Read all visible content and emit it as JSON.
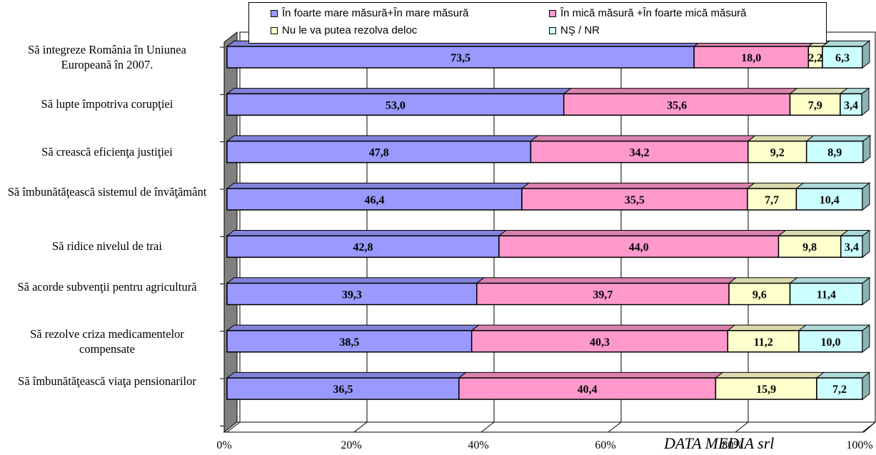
{
  "chart_data": {
    "type": "bar",
    "stacked": true,
    "orientation": "horizontal",
    "percent_stacked": true,
    "categories": [
      "Să integreze România în Uniunea Europeană în 2007.",
      "Să lupte împotriva corupţiei",
      "Să crească eficienţa justiţiei",
      "Să îmbunătăţească sistemul de învăţământ",
      "Să ridice nivelul de trai",
      "Să acorde subvenţii pentru agricultură",
      "Să rezolve criza medicamentelor compensate",
      "Să îmbunătăţească viaţa pensionarilor"
    ],
    "series": [
      {
        "name": "În foarte mare măsură+În mare măsură",
        "color": "#9999ff",
        "values": [
          73.5,
          53.0,
          47.8,
          46.4,
          42.8,
          39.3,
          38.5,
          36.5
        ],
        "labels": [
          "73,5",
          "53,0",
          "47,8",
          "46,4",
          "42,8",
          "39,3",
          "38,5",
          "36,5"
        ]
      },
      {
        "name": "În mică măsură +În foarte mică măsură",
        "color": "#ff99cc",
        "values": [
          18.0,
          35.6,
          34.2,
          35.5,
          44.0,
          39.7,
          40.3,
          40.4
        ],
        "labels": [
          "18,0",
          "35,6",
          "34,2",
          "35,5",
          "44,0",
          "39,7",
          "40,3",
          "40,4"
        ]
      },
      {
        "name": "Nu le va putea rezolva deloc",
        "color": "#ffffcc",
        "values": [
          2.2,
          7.9,
          9.2,
          7.7,
          9.8,
          9.6,
          11.2,
          15.9
        ],
        "labels": [
          "2,2",
          "7,9",
          "9,2",
          "7,7",
          "9,8",
          "9,6",
          "11,2",
          "15,9"
        ]
      },
      {
        "name": "NŞ / NR",
        "color": "#ccffff",
        "values": [
          6.3,
          3.4,
          8.9,
          10.4,
          3.4,
          11.4,
          10.0,
          7.2
        ],
        "labels": [
          "6,3",
          "3,4",
          "8,9",
          "10,4",
          "3,4",
          "11,4",
          "10,0",
          "7,2"
        ]
      }
    ],
    "x_ticks": [
      "0%",
      "20%",
      "40%",
      "60%",
      "80%",
      "100%"
    ],
    "xlim": [
      0,
      100
    ],
    "grid": true,
    "legend_position": "top",
    "three_d": true
  },
  "watermark": "DATA MEDIA srl"
}
